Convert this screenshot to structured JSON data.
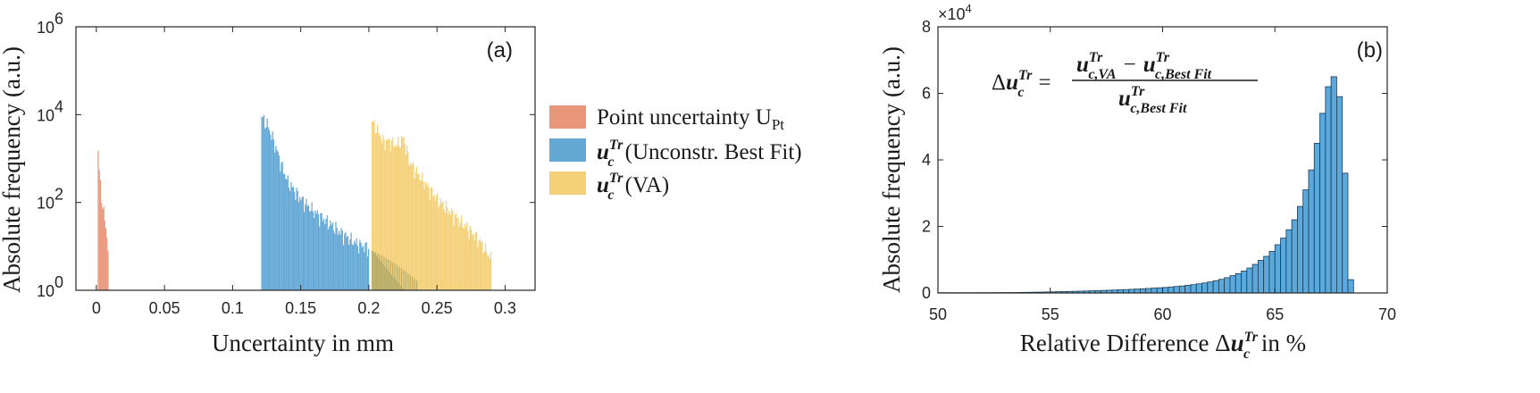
{
  "colors": {
    "point": "#e8977a",
    "best_fit": "#64a8d6",
    "va": "#f4d178",
    "overlap": "#b8ad6a",
    "hist_b": "#5aa9dd",
    "hist_b_edge": "#1f3a50"
  },
  "chart_data": [
    {
      "type": "bar",
      "panel_label": "(a)",
      "title": "",
      "xlabel": "Uncertainty in mm",
      "ylabel": "Absolute frequency (a.u.)",
      "xlim": [
        -0.015,
        0.322
      ],
      "ylim": [
        1,
        1000000
      ],
      "yscale": "log",
      "x_ticks": [
        "0",
        "0.05",
        "0.1",
        "0.15",
        "0.2",
        "0.25",
        "0.3"
      ],
      "y_tick_exponents": [
        "6",
        "4",
        "2",
        "0"
      ],
      "y_tick_base": "10",
      "legend_position": "right, outside",
      "grid": false,
      "series": [
        {
          "name": "Point uncertainty U",
          "name_subscript": "Pt",
          "color_key": "point",
          "x": [
            0.001,
            0.002,
            0.003,
            0.004,
            0.005,
            0.006,
            0.007,
            0.008,
            0.009
          ],
          "y": [
            1500,
            400,
            180,
            100,
            60,
            35,
            22,
            12,
            5
          ]
        },
        {
          "name_math": "u",
          "name_sub": "c",
          "name_sup": "Tr",
          "name_rest": " (Unconstr. Best Fit)",
          "color_key": "best_fit",
          "x": [
            0.121,
            0.125,
            0.13,
            0.135,
            0.14,
            0.15,
            0.16,
            0.17,
            0.18,
            0.19,
            0.2
          ],
          "y": [
            9000,
            6000,
            2500,
            800,
            300,
            120,
            60,
            35,
            20,
            12,
            9
          ]
        },
        {
          "name_math": "u",
          "name_sub": "c",
          "name_sup": "Tr",
          "name_rest": " (VA)",
          "color_key": "va",
          "x": [
            0.202,
            0.205,
            0.21,
            0.215,
            0.22,
            0.225,
            0.23,
            0.24,
            0.25,
            0.26,
            0.27,
            0.28,
            0.29
          ],
          "y": [
            7000,
            5000,
            2500,
            2500,
            2000,
            3000,
            800,
            300,
            120,
            60,
            30,
            15,
            5
          ]
        }
      ]
    },
    {
      "type": "bar",
      "panel_label": "(b)",
      "title": "",
      "xlabel_prefix": "Relative Difference Δ",
      "xlabel_math": "u",
      "xlabel_sub": "c",
      "xlabel_sup": "Tr",
      "xlabel_suffix": " in %",
      "ylabel": "Absolute frequency (a.u.)",
      "xlim": [
        50,
        70
      ],
      "ylim": [
        0,
        80000
      ],
      "y_multiplier": "×10",
      "y_multiplier_exp": "4",
      "x_ticks": [
        "50",
        "55",
        "60",
        "65",
        "70"
      ],
      "y_ticks": [
        "0",
        "2",
        "4",
        "6",
        "8"
      ],
      "grid": false,
      "formula": {
        "lhs_delta": "Δ",
        "u": "u",
        "sub_lhs": "c",
        "sup": "Tr",
        "eq": "=",
        "num_sub1": "c,VA",
        "minus": "−",
        "num_sub2": "c,Best Fit",
        "den_sub": "c,Best Fit"
      },
      "bin_width": 0.25,
      "bin_starts": [
        50.0,
        50.25,
        50.5,
        50.75,
        51.0,
        51.25,
        51.5,
        51.75,
        52.0,
        52.25,
        52.5,
        52.75,
        53.0,
        53.25,
        53.5,
        53.75,
        54.0,
        54.25,
        54.5,
        54.75,
        55.0,
        55.25,
        55.5,
        55.75,
        56.0,
        56.25,
        56.5,
        56.75,
        57.0,
        57.25,
        57.5,
        57.75,
        58.0,
        58.25,
        58.5,
        58.75,
        59.0,
        59.25,
        59.5,
        59.75,
        60.0,
        60.25,
        60.5,
        60.75,
        61.0,
        61.25,
        61.5,
        61.75,
        62.0,
        62.25,
        62.5,
        62.75,
        63.0,
        63.25,
        63.5,
        63.75,
        64.0,
        64.25,
        64.5,
        64.75,
        65.0,
        65.25,
        65.5,
        65.75,
        66.0,
        66.25,
        66.5,
        66.75,
        67.0,
        67.25,
        67.5,
        67.75,
        68.0,
        68.25
      ],
      "counts": [
        80,
        80,
        80,
        80,
        80,
        80,
        80,
        90,
        90,
        100,
        100,
        110,
        120,
        130,
        150,
        170,
        200,
        230,
        260,
        300,
        340,
        380,
        420,
        460,
        500,
        550,
        600,
        650,
        700,
        760,
        820,
        880,
        950,
        1020,
        1100,
        1180,
        1260,
        1350,
        1450,
        1550,
        1650,
        1800,
        1950,
        2100,
        2300,
        2500,
        2750,
        3000,
        3300,
        3700,
        4100,
        4600,
        5200,
        5800,
        6600,
        7500,
        8600,
        9800,
        11000,
        12500,
        14500,
        16500,
        19000,
        22000,
        26000,
        31000,
        37000,
        45000,
        54000,
        62000,
        65000,
        59000,
        36000,
        4000
      ]
    }
  ]
}
